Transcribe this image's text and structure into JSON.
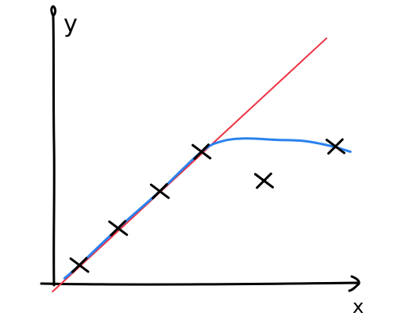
{
  "chart_data": {
    "type": "scatter",
    "title": "",
    "xlabel": "x",
    "ylabel": "y",
    "xlim": [
      0,
      10
    ],
    "ylim": [
      0,
      10
    ],
    "grid": false,
    "legend": "none",
    "axis_ticks": "none",
    "colors": {
      "axes": "#000000",
      "points": "#000000",
      "reference_line": "#ee3344",
      "curve": "#2a82ee"
    },
    "points": [
      {
        "x": 0.8,
        "y": 0.7
      },
      {
        "x": 2.1,
        "y": 2.1
      },
      {
        "x": 3.5,
        "y": 3.5
      },
      {
        "x": 4.9,
        "y": 5.0
      },
      {
        "x": 7.0,
        "y": 3.9
      },
      {
        "x": 9.4,
        "y": 5.2
      }
    ],
    "series": [
      {
        "kind": "line",
        "color": "#ee3344",
        "x": [
          -0.1,
          9.1
        ],
        "y": [
          -0.3,
          9.3
        ]
      },
      {
        "kind": "curve",
        "color": "#2a82ee",
        "x": [
          0.3,
          0.8,
          2.1,
          3.5,
          4.9,
          5.6,
          6.4,
          7.4,
          8.4,
          9.3,
          9.9
        ],
        "y": [
          0.2,
          0.7,
          2.1,
          3.5,
          5.0,
          5.4,
          5.5,
          5.45,
          5.4,
          5.2,
          5.0
        ]
      }
    ]
  }
}
